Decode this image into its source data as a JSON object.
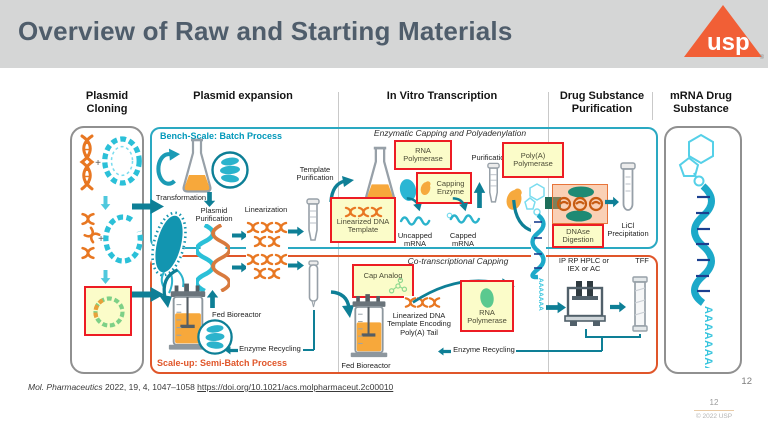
{
  "header": {
    "title": "Overview of Raw and Starting Materials",
    "logo_text": "usp",
    "logo_reg": "®"
  },
  "columns": {
    "cloning": "Plasmid Cloning",
    "expansion": "Plasmid expansion",
    "ivt": "In Vitro Transcription",
    "purification": "Drug Substance Purification",
    "substance": "mRNA Drug Substance"
  },
  "processes": {
    "bench": "Bench-Scale: Batch Process",
    "bench_sub": "Enzymatic Capping and Polyadenylation",
    "scaleup": "Scale-up: Semi-Batch Process",
    "scaleup_sub": "Co-transcriptional Capping"
  },
  "labels": {
    "plus": "+",
    "transformation": "Transformation",
    "plasmid_purification": "Plasmid Purification",
    "linearization": "Linearization",
    "template_purification": "Template Purification",
    "purification": "Purification",
    "uncapped_mrna": "Uncapped mRNA",
    "capped_mrna": "Capped mRNA",
    "licl_precipitation": "LiCl Precipitation",
    "ip_rp_hplc": "IP RP HPLC or IEX or AC",
    "tff": "TFF",
    "fed_bioreactor_1": "Fed Bioreactor",
    "fed_bioreactor_2": "Fed Bioreactor",
    "enzyme_recycling_1": "Enzyme Recycling",
    "enzyme_recycling_2": "Enzyme Recycling",
    "linearized_dna_polya": "Linearized DNA Template Encoding Poly(A) Tail"
  },
  "highlights": {
    "rna_polymerase_1": "RNA Polymerase",
    "capping_enzyme": "Capping Enzyme",
    "polya_polymerase": "Poly(A) Polymerase",
    "linearized_dna_template": "Linearized DNA Template",
    "dnase_digestion": "DNAse Digestion",
    "cap_analog": "Cap Analog",
    "rna_polymerase_2": "RNA Polymerase"
  },
  "misc": {
    "polya_mid": "AAAAAAA",
    "polya_big": "AAAAAAAA"
  },
  "footer": {
    "citation_journal": "Mol. Pharmaceutics",
    "citation_rest": " 2022, 19, 4, 1047–1058 ",
    "citation_link": "https://doi.org/10.1021/acs.molpharmaceut.2c00010",
    "slide_number": "12",
    "footer_page": "12",
    "copyright": "© 2022 USP"
  },
  "colors": {
    "header_bg": "#d5d6d6",
    "title": "#4f5d6b",
    "usp_orange": "#f15f36",
    "bench_teal": "#2aa9c2",
    "bench_label": "#0098ba",
    "scaleup_orange": "#e0562a",
    "highlight_bg": "#fbfcc9",
    "highlight_border": "#ed1c24",
    "arrow_teal": "#0e7f96",
    "dna_orange": "#e87722",
    "icon_teal": "#2bb3cc"
  },
  "icons": {
    "dna-helix-icon": "orange double helix",
    "plasmid-ring-icon": "teal dashed circle",
    "plasmid-open-icon": "teal dashed open circle",
    "recombinant-plasmid-icon": "green-orange dashed circle",
    "flask-icon": "erlenmeyer flask with orange liquid",
    "circular-arrow-icon": "teal curved cycle arrow",
    "bacteria-magnifier-icon": "circle with teal bacteria",
    "bacteria-icon": "large teal bacterium with flagella",
    "plasmid-coil-icon": "twisted teal-orange strand",
    "spin-column-icon": "purification spin column",
    "column-icon": "chromatography tube",
    "test-tube-icon": "conical test tube",
    "hplc-icon": "HPLC instrument",
    "tff-column-icon": "TFF filter column",
    "bioreactor-icon": "stirred bioreactor with orange media",
    "mrna-wave-icon": "teal mRNA squiggle",
    "mrna-strand-icon": "capped mRNA with poly(A) tail",
    "enzyme-blob-icon": "enzyme blob",
    "molecule-icon": "cap analog molecule",
    "dnase-scene-icon": "enzymes digesting DNA"
  }
}
